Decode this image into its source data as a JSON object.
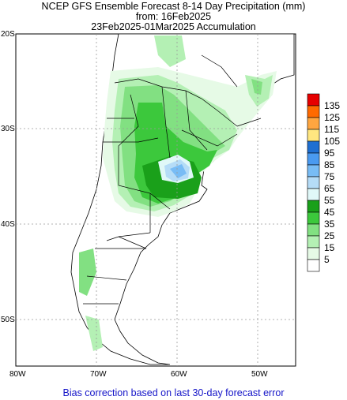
{
  "title": {
    "line1": "NCEP GFS Ensemble Forecast 8-14 Day Precipitation (mm)",
    "line2": "from: 16Feb2025",
    "line3": "23Feb2025-01Mar2025 Accumulation"
  },
  "lat_labels": [
    "20S",
    "30S",
    "40S",
    "50S"
  ],
  "lon_labels": [
    "80W",
    "70W",
    "60W",
    "50W"
  ],
  "colorbar": {
    "labels": [
      "135",
      "125",
      "115",
      "105",
      "95",
      "85",
      "75",
      "65",
      "55",
      "45",
      "35",
      "25",
      "15",
      "5"
    ],
    "colors": [
      "#e60000",
      "#ff6a00",
      "#ffa640",
      "#ffe680",
      "#1f6fd1",
      "#4a9af0",
      "#78bcf5",
      "#b5dcf7",
      "#e0f8f8",
      "#1aa01a",
      "#3cc83c",
      "#82e082",
      "#b4f0b4",
      "#e6fae6",
      "#ffffff"
    ]
  },
  "colors": {
    "ocean": "#ffffff",
    "land": "#ffffff",
    "bias_text": "#1515c8"
  },
  "footer": "Bias correction based on last 30-day forecast error"
}
